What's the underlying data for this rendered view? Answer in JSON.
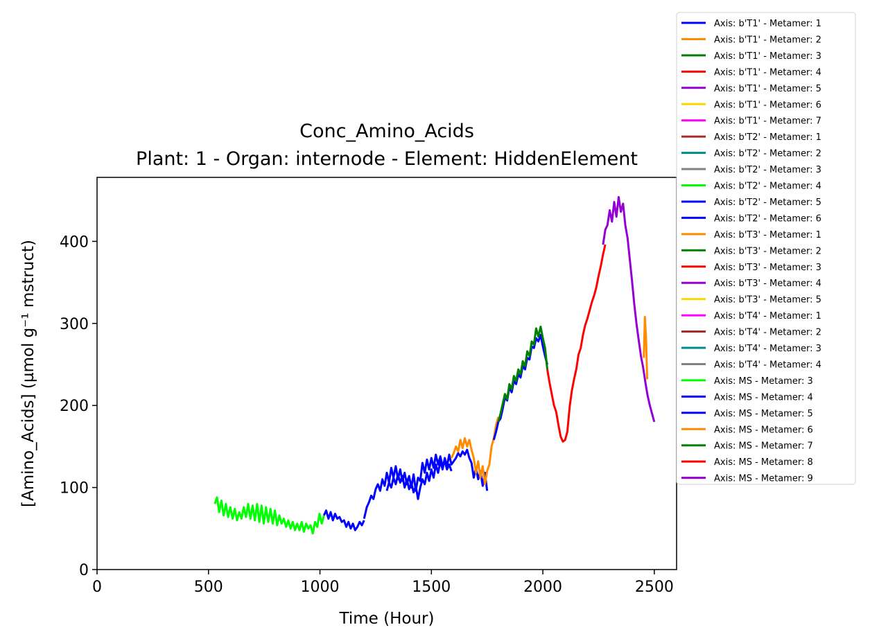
{
  "chart_data": {
    "type": "line",
    "title": "Conc_Amino_Acids",
    "subtitle": "Plant: 1 - Organ: internode - Element: HiddenElement",
    "xlabel": "Time (Hour)",
    "ylabel": "[Amino_Acids] (µmol g⁻¹ mstruct)",
    "xlim": [
      0,
      2600
    ],
    "ylim": [
      0,
      478
    ],
    "xticks": [
      0,
      500,
      1000,
      1500,
      2000,
      2500
    ],
    "yticks": [
      0,
      100,
      200,
      300,
      400
    ],
    "grid": false,
    "legend_position": "outside-right",
    "legend": [
      {
        "label": "Axis: b'T1' - Metamer: 1",
        "color": "#0000ff"
      },
      {
        "label": "Axis: b'T1' - Metamer: 2",
        "color": "#ff8c00"
      },
      {
        "label": "Axis: b'T1' - Metamer: 3",
        "color": "#008000"
      },
      {
        "label": "Axis: b'T1' - Metamer: 4",
        "color": "#ff0000"
      },
      {
        "label": "Axis: b'T1' - Metamer: 5",
        "color": "#9400d3"
      },
      {
        "label": "Axis: b'T1' - Metamer: 6",
        "color": "#ffd700"
      },
      {
        "label": "Axis: b'T1' - Metamer: 7",
        "color": "#ff00ff"
      },
      {
        "label": "Axis: b'T2' - Metamer: 1",
        "color": "#a52a2a"
      },
      {
        "label": "Axis: b'T2' - Metamer: 2",
        "color": "#008b8b"
      },
      {
        "label": "Axis: b'T2' - Metamer: 3",
        "color": "#808080"
      },
      {
        "label": "Axis: b'T2' - Metamer: 4",
        "color": "#00ff00"
      },
      {
        "label": "Axis: b'T2' - Metamer: 5",
        "color": "#0000ff"
      },
      {
        "label": "Axis: b'T2' - Metamer: 6",
        "color": "#0000ff"
      },
      {
        "label": "Axis: b'T3' - Metamer: 1",
        "color": "#ff8c00"
      },
      {
        "label": "Axis: b'T3' - Metamer: 2",
        "color": "#008000"
      },
      {
        "label": "Axis: b'T3' - Metamer: 3",
        "color": "#ff0000"
      },
      {
        "label": "Axis: b'T3' - Metamer: 4",
        "color": "#9400d3"
      },
      {
        "label": "Axis: b'T3' - Metamer: 5",
        "color": "#ffd700"
      },
      {
        "label": "Axis: b'T4' - Metamer: 1",
        "color": "#ff00ff"
      },
      {
        "label": "Axis: b'T4' - Metamer: 2",
        "color": "#a52a2a"
      },
      {
        "label": "Axis: b'T4' - Metamer: 3",
        "color": "#008b8b"
      },
      {
        "label": "Axis: b'T4' - Metamer: 4",
        "color": "#808080"
      },
      {
        "label": "Axis: MS - Metamer: 3",
        "color": "#00ff00"
      },
      {
        "label": "Axis: MS - Metamer: 4",
        "color": "#0000ff"
      },
      {
        "label": "Axis: MS - Metamer: 5",
        "color": "#0000ff"
      },
      {
        "label": "Axis: MS - Metamer: 6",
        "color": "#ff8c00"
      },
      {
        "label": "Axis: MS - Metamer: 7",
        "color": "#008000"
      },
      {
        "label": "Axis: MS - Metamer: 8",
        "color": "#ff0000"
      },
      {
        "label": "Axis: MS - Metamer: 9",
        "color": "#9400d3"
      }
    ],
    "series": [
      {
        "color": "#00ff00",
        "x": [
          528,
          538,
          548,
          558,
          568,
          578,
          588,
          598,
          608,
          618,
          628,
          638,
          648,
          658,
          668,
          678,
          688,
          698,
          708,
          718,
          728,
          738,
          748,
          758,
          768,
          778,
          788,
          798,
          808,
          818,
          828,
          838,
          848,
          858,
          868,
          878,
          888,
          898,
          908,
          918,
          928,
          938,
          948,
          958,
          968,
          978,
          988,
          998,
          1008,
          1018
        ],
        "y": [
          80,
          88,
          70,
          84,
          66,
          80,
          64,
          76,
          62,
          74,
          60,
          70,
          62,
          76,
          64,
          80,
          62,
          78,
          60,
          80,
          58,
          78,
          56,
          76,
          58,
          74,
          56,
          72,
          54,
          66,
          56,
          62,
          52,
          60,
          50,
          58,
          48,
          56,
          48,
          58,
          46,
          56,
          50,
          54,
          44,
          58,
          52,
          68,
          56,
          66
        ]
      },
      {
        "color": "#0000ff",
        "x": [
          1018,
          1028,
          1038,
          1048,
          1058,
          1068,
          1078,
          1088,
          1098,
          1108,
          1118,
          1128,
          1138,
          1148,
          1158,
          1168,
          1178,
          1188,
          1198
        ],
        "y": [
          66,
          72,
          62,
          70,
          60,
          68,
          62,
          64,
          58,
          60,
          52,
          58,
          50,
          56,
          48,
          52,
          58,
          54,
          60
        ]
      },
      {
        "color": "#0000ff",
        "x": [
          1198,
          1210,
          1220,
          1230,
          1240,
          1250,
          1260,
          1270,
          1280,
          1290,
          1300,
          1310,
          1320,
          1330,
          1340,
          1350,
          1360,
          1370,
          1380,
          1390,
          1400,
          1410,
          1420,
          1430,
          1440,
          1450,
          1460,
          1470,
          1480,
          1490,
          1500,
          1510,
          1520,
          1530,
          1540,
          1550,
          1560,
          1570,
          1580,
          1590
        ],
        "y": [
          62,
          76,
          82,
          90,
          86,
          98,
          104,
          96,
          110,
          102,
          118,
          106,
          124,
          112,
          126,
          110,
          122,
          108,
          118,
          104,
          114,
          100,
          116,
          96,
          112,
          108,
          130,
          118,
          134,
          122,
          136,
          124,
          140,
          128,
          138,
          126,
          132,
          122,
          128,
          120
        ]
      },
      {
        "color": "#0000ff",
        "x": [
          1300,
          1310,
          1320,
          1330,
          1340,
          1350,
          1360,
          1370,
          1380,
          1390,
          1400,
          1410,
          1420,
          1430,
          1440,
          1450,
          1460,
          1470,
          1480,
          1490,
          1500,
          1510,
          1520,
          1530,
          1540,
          1550,
          1560,
          1570,
          1580,
          1590,
          1600,
          1610,
          1620,
          1630,
          1640,
          1650,
          1660,
          1670,
          1680,
          1690,
          1700,
          1710,
          1720,
          1730,
          1740,
          1750
        ],
        "y": [
          96,
          106,
          100,
          112,
          104,
          116,
          106,
          114,
          100,
          110,
          98,
          106,
          94,
          102,
          86,
          100,
          110,
          104,
          118,
          108,
          122,
          112,
          128,
          118,
          132,
          122,
          136,
          126,
          140,
          128,
          132,
          136,
          142,
          138,
          144,
          140,
          146,
          136,
          130,
          112,
          124,
          110,
          120,
          102,
          118,
          96
        ]
      },
      {
        "color": "#ff8c00",
        "x": [
          1590,
          1600,
          1610,
          1620,
          1630,
          1640,
          1650,
          1660,
          1670,
          1680,
          1690,
          1700,
          1710,
          1720,
          1730,
          1740,
          1750,
          1760,
          1770,
          1780,
          1790,
          1800
        ],
        "y": [
          136,
          142,
          150,
          144,
          158,
          148,
          160,
          150,
          158,
          146,
          136,
          118,
          132,
          112,
          126,
          104,
          120,
          128,
          150,
          160,
          176,
          186
        ]
      },
      {
        "color": "#0000ff",
        "x": [
          1780,
          1790,
          1800,
          1810,
          1820,
          1830,
          1840,
          1850,
          1860,
          1870,
          1880,
          1890,
          1900,
          1910,
          1920,
          1930,
          1940,
          1950,
          1960,
          1970,
          1980,
          1990,
          2000,
          2010,
          2020
        ],
        "y": [
          158,
          168,
          180,
          184,
          196,
          210,
          206,
          222,
          216,
          230,
          226,
          238,
          234,
          248,
          244,
          258,
          256,
          272,
          270,
          282,
          278,
          286,
          272,
          260,
          250
        ]
      },
      {
        "color": "#008000",
        "x": [
          1800,
          1810,
          1820,
          1830,
          1840,
          1850,
          1860,
          1870,
          1880,
          1890,
          1900,
          1910,
          1920,
          1930,
          1940,
          1950,
          1960,
          1970,
          1980,
          1990,
          2000,
          2010,
          2020
        ],
        "y": [
          180,
          190,
          202,
          214,
          208,
          226,
          220,
          236,
          230,
          244,
          238,
          254,
          248,
          266,
          260,
          278,
          274,
          294,
          284,
          296,
          282,
          270,
          244
        ]
      },
      {
        "color": "#ff0000",
        "x": [
          2020,
          2030,
          2040,
          2050,
          2060,
          2070,
          2080,
          2090,
          2100,
          2110,
          2120,
          2130,
          2140,
          2150,
          2160,
          2170,
          2180,
          2190,
          2200,
          2210,
          2220,
          2230,
          2240,
          2250,
          2260,
          2270,
          2280
        ],
        "y": [
          244,
          228,
          214,
          200,
          192,
          176,
          162,
          156,
          158,
          168,
          198,
          218,
          232,
          244,
          262,
          270,
          286,
          298,
          306,
          316,
          326,
          334,
          344,
          358,
          370,
          384,
          396
        ]
      },
      {
        "color": "#9400d3",
        "x": [
          2270,
          2280,
          2290,
          2300,
          2310,
          2320,
          2330,
          2340,
          2350,
          2360,
          2370,
          2380,
          2390,
          2400,
          2410,
          2420,
          2430,
          2440,
          2450,
          2460,
          2470,
          2480,
          2490,
          2500
        ],
        "y": [
          396,
          414,
          420,
          438,
          424,
          448,
          430,
          454,
          436,
          446,
          420,
          404,
          378,
          352,
          324,
          300,
          280,
          260,
          246,
          228,
          212,
          200,
          190,
          180
        ]
      },
      {
        "color": "#ff8c00",
        "x": [
          2453,
          2458,
          2463,
          2468
        ],
        "y": [
          258,
          308,
          282,
          232
        ]
      }
    ]
  }
}
